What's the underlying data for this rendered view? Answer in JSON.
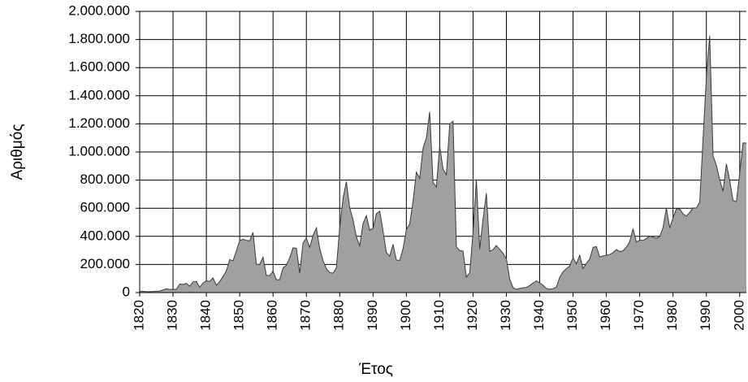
{
  "chart_data": {
    "type": "area",
    "x_label": "Έτος",
    "y_label": "Αριθμός",
    "x": [
      1820,
      1821,
      1822,
      1823,
      1824,
      1825,
      1826,
      1827,
      1828,
      1829,
      1830,
      1831,
      1832,
      1833,
      1834,
      1835,
      1836,
      1837,
      1838,
      1839,
      1840,
      1841,
      1842,
      1843,
      1844,
      1845,
      1846,
      1847,
      1848,
      1849,
      1850,
      1851,
      1852,
      1853,
      1854,
      1855,
      1856,
      1857,
      1858,
      1859,
      1860,
      1861,
      1862,
      1863,
      1864,
      1865,
      1866,
      1867,
      1868,
      1869,
      1870,
      1871,
      1872,
      1873,
      1874,
      1875,
      1876,
      1877,
      1878,
      1879,
      1880,
      1881,
      1882,
      1883,
      1884,
      1885,
      1886,
      1887,
      1888,
      1889,
      1890,
      1891,
      1892,
      1893,
      1894,
      1895,
      1896,
      1897,
      1898,
      1899,
      1900,
      1901,
      1902,
      1903,
      1904,
      1905,
      1906,
      1907,
      1908,
      1909,
      1910,
      1911,
      1912,
      1913,
      1914,
      1915,
      1916,
      1917,
      1918,
      1919,
      1920,
      1921,
      1922,
      1923,
      1924,
      1925,
      1926,
      1927,
      1928,
      1929,
      1930,
      1931,
      1932,
      1933,
      1934,
      1935,
      1936,
      1937,
      1938,
      1939,
      1940,
      1941,
      1942,
      1943,
      1944,
      1945,
      1946,
      1947,
      1948,
      1949,
      1950,
      1951,
      1952,
      1953,
      1954,
      1955,
      1956,
      1957,
      1958,
      1959,
      1960,
      1961,
      1962,
      1963,
      1964,
      1965,
      1966,
      1967,
      1968,
      1969,
      1970,
      1971,
      1972,
      1973,
      1974,
      1975,
      1976,
      1977,
      1978,
      1979,
      1980,
      1981,
      1982,
      1983,
      1984,
      1985,
      1986,
      1987,
      1988,
      1989,
      1990,
      1991,
      1992,
      1993,
      1994,
      1995,
      1996,
      1997,
      1998,
      1999,
      2000,
      2001,
      2002
    ],
    "series": [
      {
        "color": "#a0a0a0",
        "values": [
          8385,
          9127,
          6911,
          6354,
          7912,
          10199,
          10837,
          18875,
          27382,
          22520,
          23322,
          22633,
          60482,
          58640,
          65365,
          45374,
          76242,
          79340,
          38914,
          68069,
          84066,
          80289,
          104565,
          52496,
          78615,
          114371,
          154416,
          234968,
          226527,
          297024,
          369980,
          379466,
          371603,
          368645,
          427833,
          200877,
          200436,
          251306,
          123126,
          121282,
          153640,
          91918,
          91985,
          176282,
          193418,
          248120,
          318568,
          315722,
          138840,
          352768,
          387203,
          321350,
          404806,
          459803,
          313339,
          227498,
          169986,
          141857,
          138469,
          177826,
          457257,
          669431,
          788992,
          603322,
          518592,
          395346,
          334203,
          490109,
          546889,
          444427,
          455302,
          560319,
          579663,
          439730,
          285631,
          258536,
          343267,
          230832,
          229299,
          311715,
          448572,
          487918,
          648743,
          857046,
          812870,
          1026499,
          1100735,
          1285349,
          782870,
          751786,
          1041570,
          878587,
          838172,
          1197892,
          1218480,
          326700,
          298826,
          295403,
          110618,
          141132,
          430001,
          805228,
          309556,
          522919,
          706896,
          294314,
          304488,
          335175,
          307255,
          279678,
          241700,
          97139,
          35576,
          23068,
          29470,
          34956,
          36329,
          50244,
          67895,
          82998,
          70756,
          51776,
          28781,
          23725,
          28551,
          38119,
          108721,
          147292,
          170570,
          188317,
          249187,
          205717,
          265520,
          170434,
          208177,
          237790,
          321625,
          326867,
          253265,
          260686,
          265398,
          271344,
          283763,
          306260,
          292248,
          296697,
          323040,
          361972,
          454448,
          358579,
          373326,
          370478,
          384685,
          400063,
          394861,
          386194,
          398613,
          462315,
          601442,
          460348,
          530639,
          596600,
          594131,
          559763,
          543903,
          570009,
          601708,
          601516,
          643025,
          1090924,
          1536483,
          1827167,
          973977,
          904292,
          804416,
          720461,
          915900,
          798378,
          654451,
          646568,
          849807,
          1064318,
          1063732
        ]
      }
    ],
    "xlim": [
      1820,
      2002
    ],
    "ylim": [
      0,
      2000000
    ],
    "xticks": [
      1820,
      1830,
      1840,
      1850,
      1860,
      1870,
      1880,
      1890,
      1900,
      1910,
      1920,
      1930,
      1940,
      1950,
      1960,
      1970,
      1980,
      1990,
      2000
    ],
    "yticks": [
      0,
      {
        "value": 200000,
        "label": "200.000"
      },
      {
        "value": 400000,
        "label": "400.000"
      },
      {
        "value": 600000,
        "label": "600.000"
      },
      {
        "value": 800000,
        "label": "800.000"
      },
      {
        "value": 1000000,
        "label": "1.000.000"
      },
      {
        "value": 1200000,
        "label": "1.200.000"
      },
      {
        "value": 1400000,
        "label": "1.400.000"
      },
      {
        "value": 1600000,
        "label": "1.600.000"
      },
      {
        "value": 1800000,
        "label": "1.800.000"
      },
      {
        "value": 2000000,
        "label": "2.000.000"
      }
    ],
    "grid": true
  }
}
